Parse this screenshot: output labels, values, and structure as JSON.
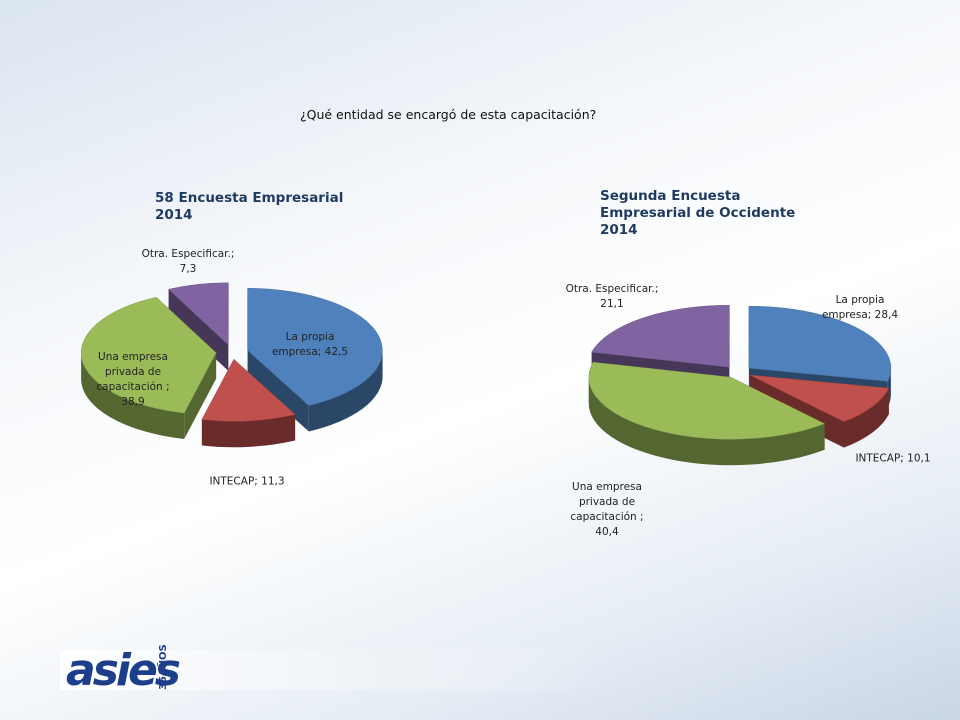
{
  "title": "¿Qué entidad se encargó de esta capacitación?",
  "logo": {
    "text": "asies",
    "badge": "35AÑOS"
  },
  "chart_data": [
    {
      "type": "pie3d",
      "title": "58 Encuesta Empresarial 2014",
      "categories": [
        "La propia empresa;",
        "INTECAP;",
        "Una empresa privada de capacitación ;",
        "Otra. Especificar.;"
      ],
      "values": [
        42.5,
        11.3,
        38.9,
        7.3
      ],
      "value_labels": [
        "42,5",
        "11,3",
        "38,9",
        "7,3"
      ],
      "colors": [
        "#4f81bd",
        "#c0504d",
        "#9bbb59",
        "#8064a2"
      ]
    },
    {
      "type": "pie3d",
      "title": "Segunda Encuesta Empresarial de Occidente 2014",
      "categories": [
        "La propia empresa;",
        "INTECAP;",
        "Una empresa privada de capacitación ;",
        "Otra. Especificar.;"
      ],
      "values": [
        28.4,
        10.1,
        40.4,
        21.1
      ],
      "value_labels": [
        "28,4",
        "10,1",
        "40,4",
        "21,1"
      ],
      "colors": [
        "#4f81bd",
        "#c0504d",
        "#9bbb59",
        "#8064a2"
      ]
    }
  ]
}
